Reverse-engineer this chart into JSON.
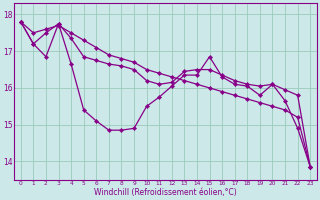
{
  "xlabel": "Windchill (Refroidissement éolien,°C)",
  "bg_color": "#cce8e8",
  "line_color": "#880088",
  "grid_color": "#99ccbb",
  "xlim": [
    -0.5,
    23.5
  ],
  "ylim": [
    13.5,
    18.3
  ],
  "yticks": [
    14,
    15,
    16,
    17,
    18
  ],
  "xticks": [
    0,
    1,
    2,
    3,
    4,
    5,
    6,
    7,
    8,
    9,
    10,
    11,
    12,
    13,
    14,
    15,
    16,
    17,
    18,
    19,
    20,
    21,
    22,
    23
  ],
  "series": [
    [
      17.8,
      17.5,
      17.6,
      17.7,
      17.5,
      17.3,
      17.1,
      16.9,
      16.8,
      16.7,
      16.5,
      16.4,
      16.3,
      16.2,
      16.1,
      16.0,
      15.9,
      15.8,
      15.7,
      15.6,
      15.5,
      15.4,
      15.2,
      13.85
    ],
    [
      17.8,
      17.2,
      17.5,
      17.75,
      17.35,
      16.85,
      16.75,
      16.65,
      16.6,
      16.5,
      16.2,
      16.1,
      16.15,
      16.45,
      16.5,
      16.5,
      16.35,
      16.2,
      16.1,
      16.05,
      16.1,
      15.95,
      15.8,
      13.85
    ],
    [
      17.8,
      17.2,
      16.85,
      17.75,
      16.65,
      15.4,
      15.1,
      14.85,
      14.85,
      14.9,
      15.5,
      15.75,
      16.05,
      16.35,
      16.35,
      16.85,
      16.3,
      16.1,
      16.05,
      15.8,
      16.1,
      15.65,
      14.9,
      13.85
    ]
  ]
}
